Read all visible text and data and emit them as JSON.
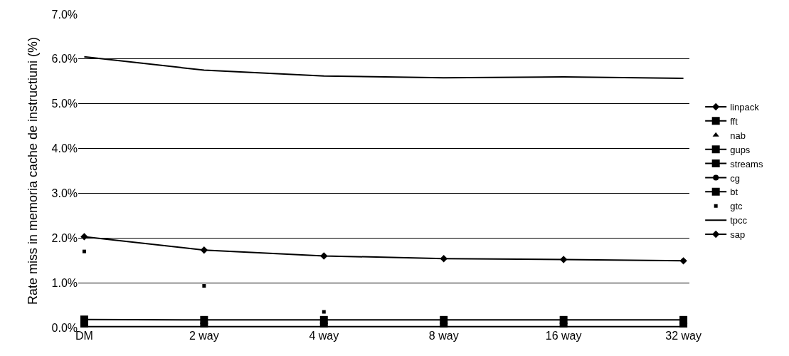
{
  "chart_data": {
    "type": "line",
    "ylabel": "Rate miss in memoria cache de instructiuni (%)",
    "categories": [
      "DM",
      "2 way",
      "4 way",
      "8 way",
      "16 way",
      "32 way"
    ],
    "ylim": [
      0,
      7
    ],
    "yticks": [
      {
        "value": 0,
        "label": "0.0%"
      },
      {
        "value": 1,
        "label": "1.0%"
      },
      {
        "value": 2,
        "label": "2.0%"
      },
      {
        "value": 3,
        "label": "3.0%"
      },
      {
        "value": 4,
        "label": "4.0%"
      },
      {
        "value": 5,
        "label": "5.0%"
      },
      {
        "value": 6,
        "label": "6.0%"
      },
      {
        "value": 7,
        "label": "7.0%"
      }
    ],
    "grid": "y",
    "legend": "right",
    "series": [
      {
        "name": "linpack",
        "color": "#000000",
        "marker": "diamond",
        "values": [
          null,
          null,
          null,
          null,
          null,
          null
        ]
      },
      {
        "name": "fft",
        "color": "#000000",
        "marker": "square",
        "values": [
          null,
          null,
          null,
          null,
          null,
          null
        ]
      },
      {
        "name": "nab",
        "color": "#000000",
        "type": "scatter",
        "marker": "triangle",
        "values": [
          null,
          null,
          null,
          null,
          null,
          null
        ]
      },
      {
        "name": "gups",
        "color": "#000000",
        "marker": "square",
        "values": [
          null,
          null,
          null,
          null,
          null,
          null
        ]
      },
      {
        "name": "streams",
        "color": "#000000",
        "marker": "square",
        "values": [
          0.18,
          0.17,
          0.17,
          0.17,
          0.17,
          0.17
        ]
      },
      {
        "name": "cg",
        "color": "#000000",
        "marker": "circle",
        "values": [
          null,
          null,
          null,
          null,
          null,
          null
        ]
      },
      {
        "name": "bt",
        "color": "#000000",
        "marker": "square",
        "values": [
          0.02,
          0.02,
          0.02,
          0.02,
          0.02,
          0.02
        ]
      },
      {
        "name": "gtc",
        "color": "#000000",
        "type": "scatter",
        "marker": "square",
        "values": [
          1.7,
          0.93,
          0.35,
          null,
          null,
          null
        ]
      },
      {
        "name": "tpcc",
        "color": "#000000",
        "marker": "none",
        "values": [
          6.05,
          5.75,
          5.62,
          5.58,
          5.6,
          5.57
        ]
      },
      {
        "name": "sap",
        "color": "#000000",
        "marker": "diamond",
        "values": [
          2.03,
          1.73,
          1.6,
          1.54,
          1.52,
          1.49
        ]
      }
    ]
  }
}
